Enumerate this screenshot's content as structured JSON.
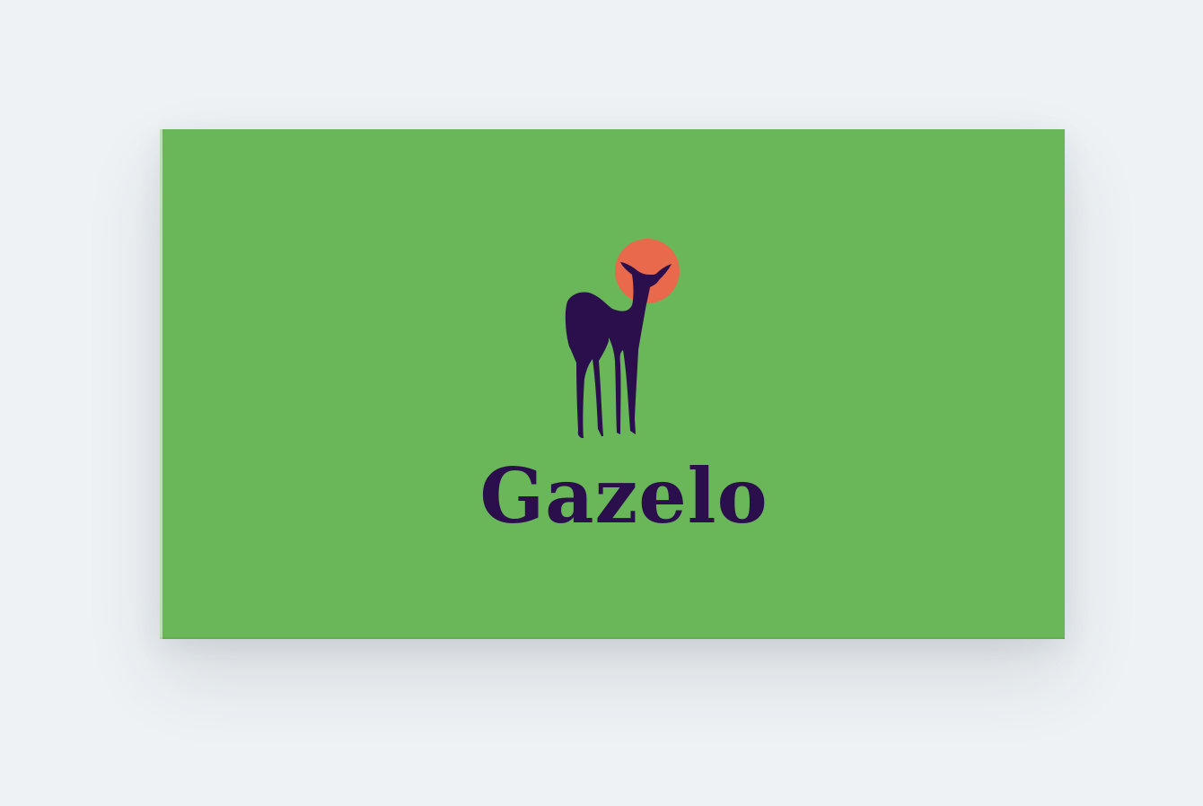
{
  "brand": {
    "name": "Gazelo",
    "logo_icon": "gazelle-icon",
    "sun_icon": "sun-circle-icon"
  },
  "colors": {
    "page_background": "#eef2f5",
    "card_background": "#6ab75a",
    "silhouette": "#2b0f4d",
    "sun": "#e8694b"
  }
}
